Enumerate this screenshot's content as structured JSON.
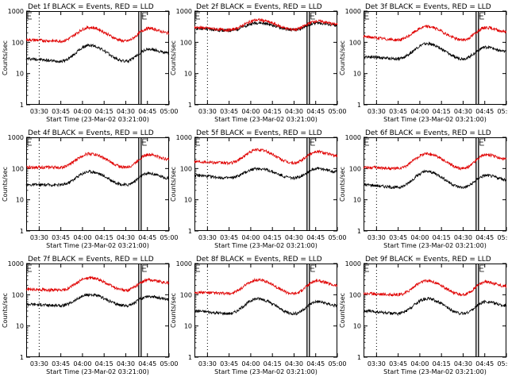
{
  "figure": {
    "xlabel": "Start Time (23-Mar-02 03:21:00)",
    "ylabel": "Counts/sec",
    "xticks": [
      "03:30",
      "03:45",
      "04:00",
      "04:15",
      "04:30",
      "04:45",
      "05:00"
    ],
    "yticks": [
      "1",
      "10",
      "100",
      "1000"
    ],
    "colors": {
      "events": "#000000",
      "lld": "#e00000"
    }
  },
  "chart_data": [
    {
      "type": "line",
      "title": "Det 1f BLACK = Events, RED = LLD",
      "ylim": [
        1,
        1000
      ],
      "scale": "log",
      "x": [
        "03:21",
        "03:45",
        "04:05",
        "04:30",
        "04:46",
        "05:00"
      ],
      "series": [
        {
          "name": "Events",
          "values": [
            30,
            25,
            80,
            25,
            60,
            45
          ]
        },
        {
          "name": "LLD",
          "values": [
            120,
            110,
            300,
            110,
            280,
            200
          ]
        }
      ]
    },
    {
      "type": "line",
      "title": "Det 2f BLACK = Events, RED = LLD",
      "ylim": [
        1,
        1000
      ],
      "scale": "log",
      "x": [
        "03:21",
        "03:45",
        "04:05",
        "04:30",
        "04:46",
        "05:00"
      ],
      "series": [
        {
          "name": "Events",
          "values": [
            280,
            240,
            420,
            250,
            420,
            350
          ]
        },
        {
          "name": "LLD",
          "values": [
            300,
            250,
            520,
            260,
            480,
            380
          ]
        }
      ]
    },
    {
      "type": "line",
      "title": "Det 3f BLACK = Events, RED = LLD",
      "ylim": [
        1,
        1000
      ],
      "scale": "log",
      "x": [
        "03:21",
        "03:45",
        "04:05",
        "04:30",
        "04:46",
        "05:00"
      ],
      "series": [
        {
          "name": "Events",
          "values": [
            35,
            30,
            90,
            30,
            70,
            50
          ]
        },
        {
          "name": "LLD",
          "values": [
            150,
            120,
            320,
            120,
            300,
            220
          ]
        }
      ]
    },
    {
      "type": "line",
      "title": "Det 4f BLACK = Events, RED = LLD",
      "ylim": [
        1,
        1000
      ],
      "scale": "log",
      "x": [
        "03:21",
        "03:45",
        "04:05",
        "04:30",
        "04:46",
        "05:00"
      ],
      "series": [
        {
          "name": "Events",
          "values": [
            30,
            30,
            80,
            30,
            70,
            50
          ]
        },
        {
          "name": "LLD",
          "values": [
            110,
            110,
            300,
            110,
            280,
            200
          ]
        }
      ]
    },
    {
      "type": "line",
      "title": "Det 5f BLACK = Events, RED = LLD",
      "ylim": [
        1,
        1000
      ],
      "scale": "log",
      "x": [
        "03:21",
        "03:45",
        "04:05",
        "04:30",
        "04:46",
        "05:00"
      ],
      "series": [
        {
          "name": "Events",
          "values": [
            60,
            50,
            100,
            50,
            100,
            80
          ]
        },
        {
          "name": "LLD",
          "values": [
            170,
            150,
            400,
            150,
            350,
            260
          ]
        }
      ]
    },
    {
      "type": "line",
      "title": "Det 6f BLACK = Events, RED = LLD",
      "ylim": [
        1,
        1000
      ],
      "scale": "log",
      "x": [
        "03:21",
        "03:45",
        "04:05",
        "04:30",
        "04:46",
        "05:00"
      ],
      "series": [
        {
          "name": "Events",
          "values": [
            30,
            25,
            80,
            25,
            60,
            45
          ]
        },
        {
          "name": "LLD",
          "values": [
            110,
            100,
            300,
            100,
            280,
            200
          ]
        }
      ]
    },
    {
      "type": "line",
      "title": "Det 7f BLACK = Events, RED = LLD",
      "ylim": [
        1,
        1000
      ],
      "scale": "log",
      "x": [
        "03:21",
        "03:45",
        "04:05",
        "04:30",
        "04:46",
        "05:00"
      ],
      "series": [
        {
          "name": "Events",
          "values": [
            50,
            45,
            100,
            45,
            90,
            70
          ]
        },
        {
          "name": "LLD",
          "values": [
            150,
            140,
            350,
            140,
            300,
            240
          ]
        }
      ]
    },
    {
      "type": "line",
      "title": "Det 8f BLACK = Events, RED = LLD",
      "ylim": [
        1,
        1000
      ],
      "scale": "log",
      "x": [
        "03:21",
        "03:45",
        "04:05",
        "04:30",
        "04:46",
        "05:00"
      ],
      "series": [
        {
          "name": "Events",
          "values": [
            30,
            25,
            75,
            25,
            60,
            45
          ]
        },
        {
          "name": "LLD",
          "values": [
            120,
            110,
            300,
            110,
            280,
            200
          ]
        }
      ]
    },
    {
      "type": "line",
      "title": "Det 9f BLACK = Events, RED = LLD",
      "ylim": [
        1,
        1000
      ],
      "scale": "log",
      "x": [
        "03:21",
        "03:45",
        "04:05",
        "04:30",
        "04:46",
        "05:00"
      ],
      "series": [
        {
          "name": "Events",
          "values": [
            30,
            25,
            75,
            25,
            60,
            45
          ]
        },
        {
          "name": "LLD",
          "values": [
            110,
            100,
            280,
            100,
            260,
            190
          ]
        }
      ]
    }
  ]
}
